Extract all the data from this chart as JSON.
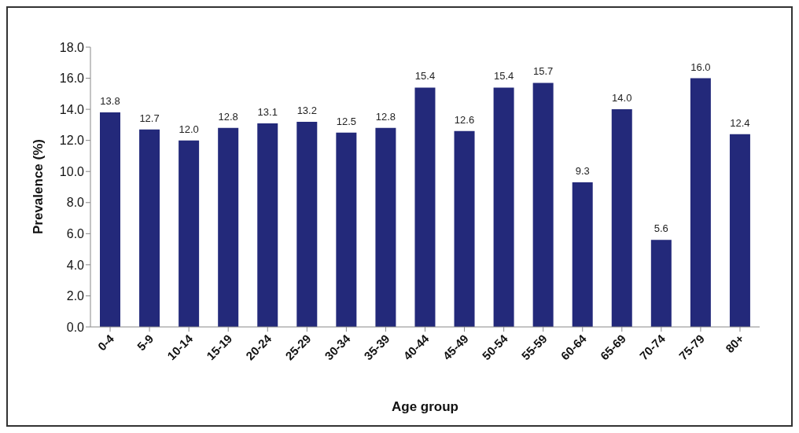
{
  "chart_data": {
    "type": "bar",
    "xlabel": "Age group",
    "ylabel": "Prevalence (%)",
    "categories": [
      "0-4",
      "5-9",
      "10-14",
      "15-19",
      "20-24",
      "25-29",
      "30-34",
      "35-39",
      "40-44",
      "45-49",
      "50-54",
      "55-59",
      "60-64",
      "65-69",
      "70-74",
      "75-79",
      "80+"
    ],
    "values": [
      13.8,
      12.7,
      12.0,
      12.8,
      13.1,
      13.2,
      12.5,
      12.8,
      15.4,
      12.6,
      15.4,
      15.7,
      9.3,
      14.0,
      5.6,
      16.0,
      12.4
    ],
    "value_labels": [
      "13.8",
      "12.7",
      "12.0",
      "12.8",
      "13.1",
      "13.2",
      "12.5",
      "12.8",
      "15.4",
      "12.6",
      "15.4",
      "15.7",
      "9.3",
      "14.0",
      "5.6",
      "16.0",
      "12.4"
    ],
    "color": "#23297a",
    "ylim": [
      0,
      18
    ],
    "yticks": [
      {
        "value": 0,
        "label": "0.0"
      },
      {
        "value": 2,
        "label": "2.0"
      },
      {
        "value": 4,
        "label": "4.0"
      },
      {
        "value": 6,
        "label": "6.0"
      },
      {
        "value": 8,
        "label": "8.0"
      },
      {
        "value": 10,
        "label": "10.0"
      },
      {
        "value": 12,
        "label": "12.0"
      },
      {
        "value": 14,
        "label": "14.0"
      },
      {
        "value": 16,
        "label": "16.0"
      },
      {
        "value": 18,
        "label": "18.0"
      }
    ],
    "grid": false,
    "legend": false
  }
}
